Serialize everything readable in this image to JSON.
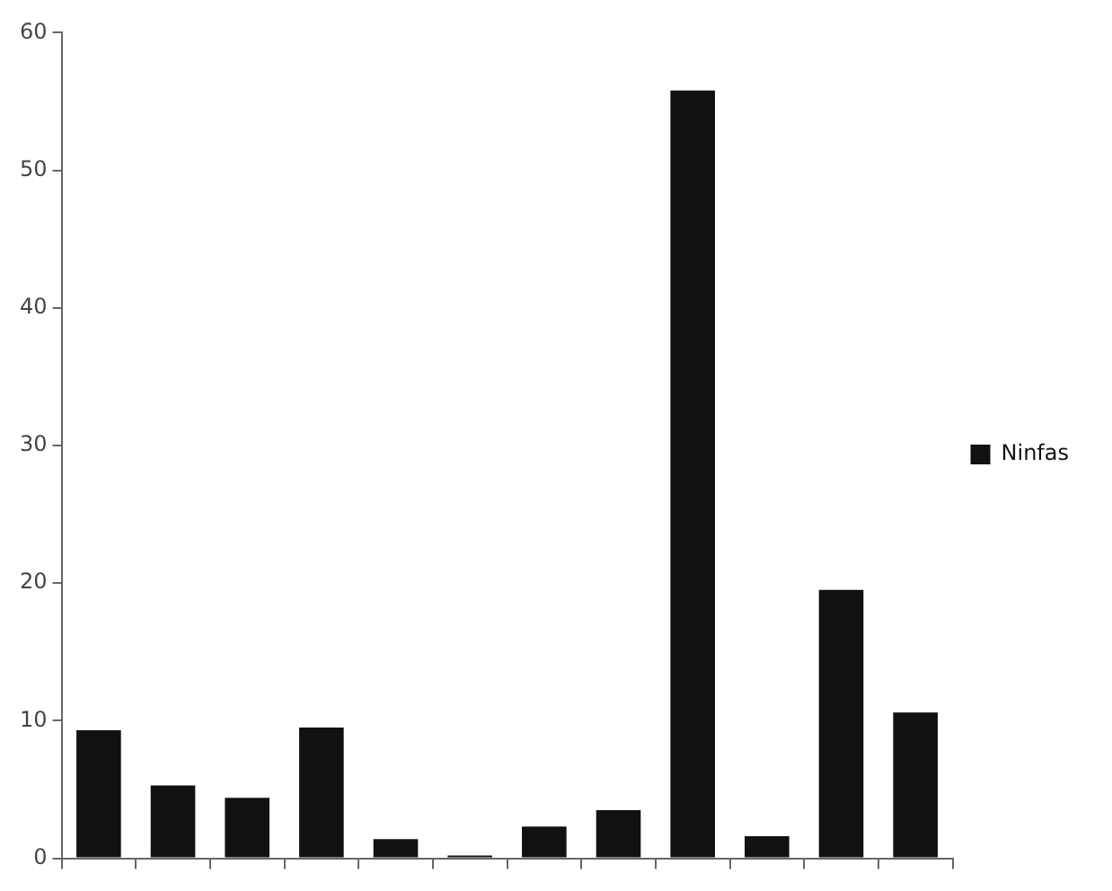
{
  "chart_data": {
    "type": "bar",
    "categories": [
      null,
      null,
      null,
      null,
      null,
      null,
      null,
      null,
      null,
      null,
      null,
      null
    ],
    "series": [
      {
        "name": "Ninfas",
        "color": "#111111",
        "values": [
          9.3,
          5.3,
          4.4,
          9.5,
          1.4,
          0.2,
          2.3,
          3.5,
          55.8,
          1.6,
          19.5,
          10.6
        ]
      }
    ],
    "ylim": [
      0,
      60
    ],
    "yticks": [
      0,
      10,
      20,
      30,
      40,
      50,
      60
    ],
    "grid": false,
    "legend": "right",
    "tick_labels": "y"
  }
}
